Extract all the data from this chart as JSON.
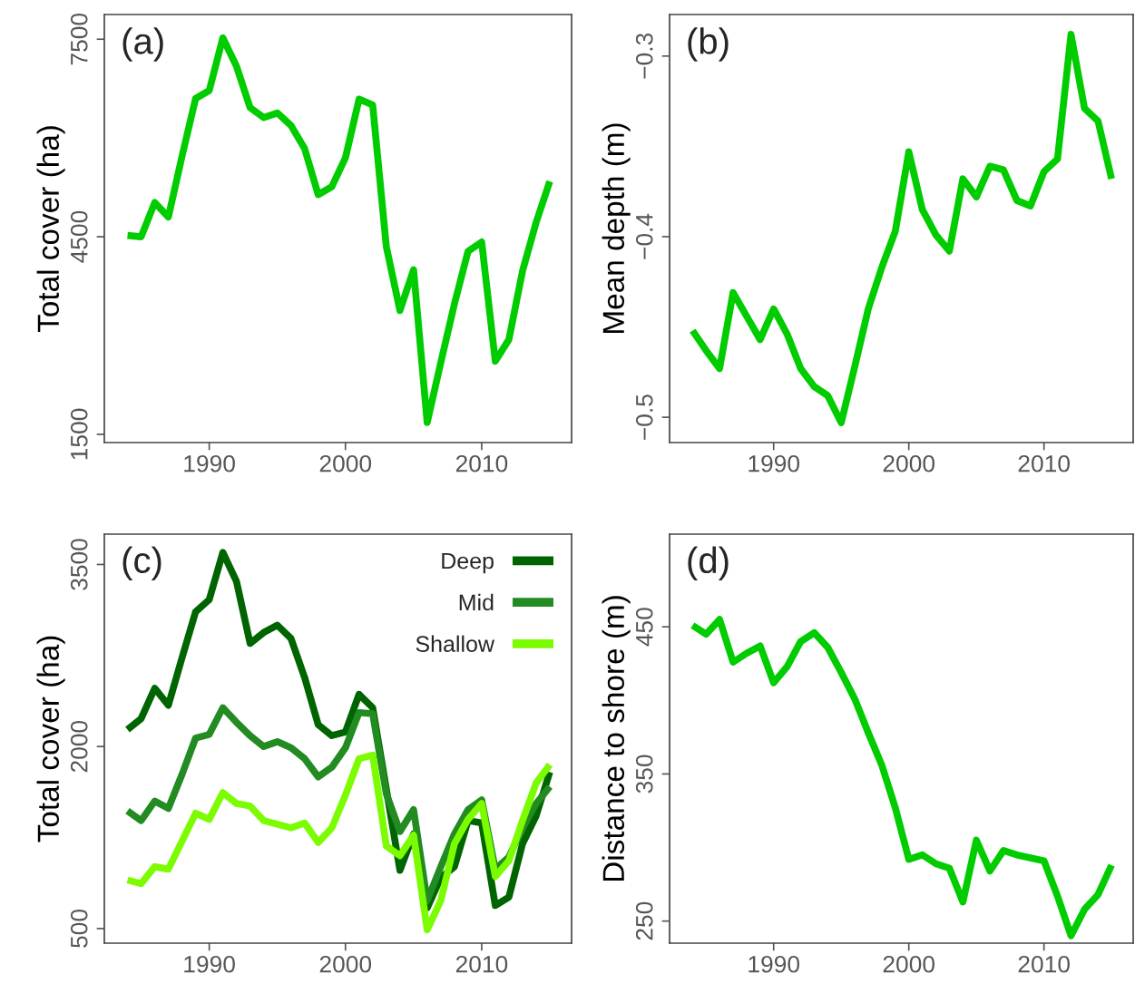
{
  "chart_data": [
    {
      "type": "line",
      "ylabel": "Total cover (ha)",
      "annotations": [
        "(a)"
      ],
      "grid": false,
      "legend": false,
      "x": [
        1984,
        1985,
        1986,
        1987,
        1988,
        1989,
        1990,
        1991,
        1992,
        1993,
        1994,
        1995,
        1996,
        1997,
        1998,
        1999,
        2000,
        2001,
        2002,
        2003,
        2004,
        2005,
        2006,
        2007,
        2008,
        2009,
        2010,
        2011,
        2012,
        2013,
        2014,
        2015
      ],
      "xlim": [
        1982.3,
        2016.6
      ],
      "xticks": [
        1990,
        2000,
        2010
      ],
      "ylim": [
        1375,
        7875
      ],
      "yticks": [
        1500,
        4500,
        7500
      ],
      "series": [
        {
          "color": "#00cc00",
          "values": [
            4520,
            4500,
            5020,
            4800,
            5720,
            6600,
            6720,
            7520,
            7090,
            6460,
            6310,
            6380,
            6190,
            5840,
            5140,
            5260,
            5700,
            6590,
            6500,
            4350,
            3380,
            4000,
            1680,
            2590,
            3480,
            4280,
            4420,
            2610,
            2940,
            3980,
            4720,
            5340
          ]
        }
      ]
    },
    {
      "type": "line",
      "ylabel": "Mean depth (m)",
      "annotations": [
        "(b)"
      ],
      "grid": false,
      "legend": false,
      "x": [
        1984,
        1985,
        1986,
        1987,
        1988,
        1989,
        1990,
        1991,
        1992,
        1993,
        1994,
        1995,
        1996,
        1997,
        1998,
        1999,
        2000,
        2001,
        2002,
        2003,
        2004,
        2005,
        2006,
        2007,
        2008,
        2009,
        2010,
        2011,
        2012,
        2013,
        2014,
        2015
      ],
      "xlim": [
        1982.3,
        2016.6
      ],
      "xticks": [
        1990,
        2000,
        2010
      ],
      "ylim": [
        -0.514,
        -0.277
      ],
      "yticks": [
        {
          "value": -0.5,
          "label": "−0.5"
        },
        {
          "value": -0.4,
          "label": "−0.4"
        },
        {
          "value": -0.3,
          "label": "−0.3"
        }
      ],
      "series": [
        {
          "color": "#00cc00",
          "values": [
            -0.452,
            -0.463,
            -0.473,
            -0.431,
            -0.444,
            -0.457,
            -0.44,
            -0.454,
            -0.473,
            -0.483,
            -0.488,
            -0.503,
            -0.472,
            -0.44,
            -0.417,
            -0.397,
            -0.353,
            -0.385,
            -0.399,
            -0.408,
            -0.368,
            -0.378,
            -0.361,
            -0.363,
            -0.38,
            -0.383,
            -0.364,
            -0.357,
            -0.288,
            -0.329,
            -0.336,
            -0.368
          ]
        }
      ]
    },
    {
      "type": "line",
      "ylabel": "Total cover (ha)",
      "annotations": [
        "(c)"
      ],
      "grid": false,
      "legend": "top right",
      "x": [
        1984,
        1985,
        1986,
        1987,
        1988,
        1989,
        1990,
        1991,
        1992,
        1993,
        1994,
        1995,
        1996,
        1997,
        1998,
        1999,
        2000,
        2001,
        2002,
        2003,
        2004,
        2005,
        2006,
        2007,
        2008,
        2009,
        2010,
        2011,
        2012,
        2013,
        2014,
        2015
      ],
      "xlim": [
        1982.3,
        2016.6
      ],
      "xticks": [
        1990,
        2000,
        2010
      ],
      "ylim": [
        380,
        3750
      ],
      "yticks": [
        500,
        2000,
        3500
      ],
      "series": [
        {
          "name": "Deep",
          "color": "#006400",
          "values": [
            2140,
            2230,
            2480,
            2340,
            2730,
            3110,
            3210,
            3600,
            3360,
            2850,
            2940,
            3000,
            2890,
            2570,
            2180,
            2090,
            2120,
            2430,
            2320,
            1650,
            980,
            1280,
            670,
            920,
            1010,
            1390,
            1370,
            690,
            760,
            1200,
            1430,
            1790
          ]
        },
        {
          "name": "Mid",
          "color": "#228b22",
          "values": [
            1470,
            1390,
            1550,
            1490,
            1770,
            2070,
            2100,
            2320,
            2200,
            2090,
            2000,
            2040,
            1990,
            1900,
            1750,
            1830,
            1990,
            2280,
            2270,
            1610,
            1300,
            1480,
            730,
            1010,
            1280,
            1480,
            1560,
            990,
            1090,
            1330,
            1530,
            1670
          ]
        },
        {
          "name": "Shallow",
          "color": "#7cfc00",
          "values": [
            900,
            870,
            1010,
            990,
            1220,
            1450,
            1400,
            1620,
            1530,
            1510,
            1390,
            1360,
            1330,
            1370,
            1210,
            1330,
            1600,
            1900,
            1930,
            1180,
            1100,
            1270,
            490,
            730,
            1200,
            1400,
            1530,
            930,
            1060,
            1390,
            1700,
            1850
          ]
        }
      ]
    },
    {
      "type": "line",
      "ylabel": "Distance to shore (m)",
      "annotations": [
        "(d)"
      ],
      "grid": false,
      "legend": false,
      "x": [
        1984,
        1985,
        1986,
        1987,
        1988,
        1989,
        1990,
        1991,
        1992,
        1993,
        1994,
        1995,
        1996,
        1997,
        1998,
        1999,
        2000,
        2001,
        2002,
        2003,
        2004,
        2005,
        2006,
        2007,
        2008,
        2009,
        2010,
        2011,
        2012,
        2013,
        2014,
        2015
      ],
      "xlim": [
        1982.3,
        2016.6
      ],
      "xticks": [
        1990,
        2000,
        2010
      ],
      "ylim": [
        235,
        513
      ],
      "yticks": [
        250,
        350,
        450
      ],
      "series": [
        {
          "color": "#00cc00",
          "values": [
            451,
            445,
            455,
            426,
            432,
            437,
            412,
            423,
            440,
            446,
            436,
            419,
            401,
            378,
            356,
            327,
            292,
            295,
            289,
            286,
            263,
            305,
            284,
            298,
            295,
            293,
            291,
            267,
            240,
            258,
            268,
            288
          ]
        }
      ]
    }
  ]
}
